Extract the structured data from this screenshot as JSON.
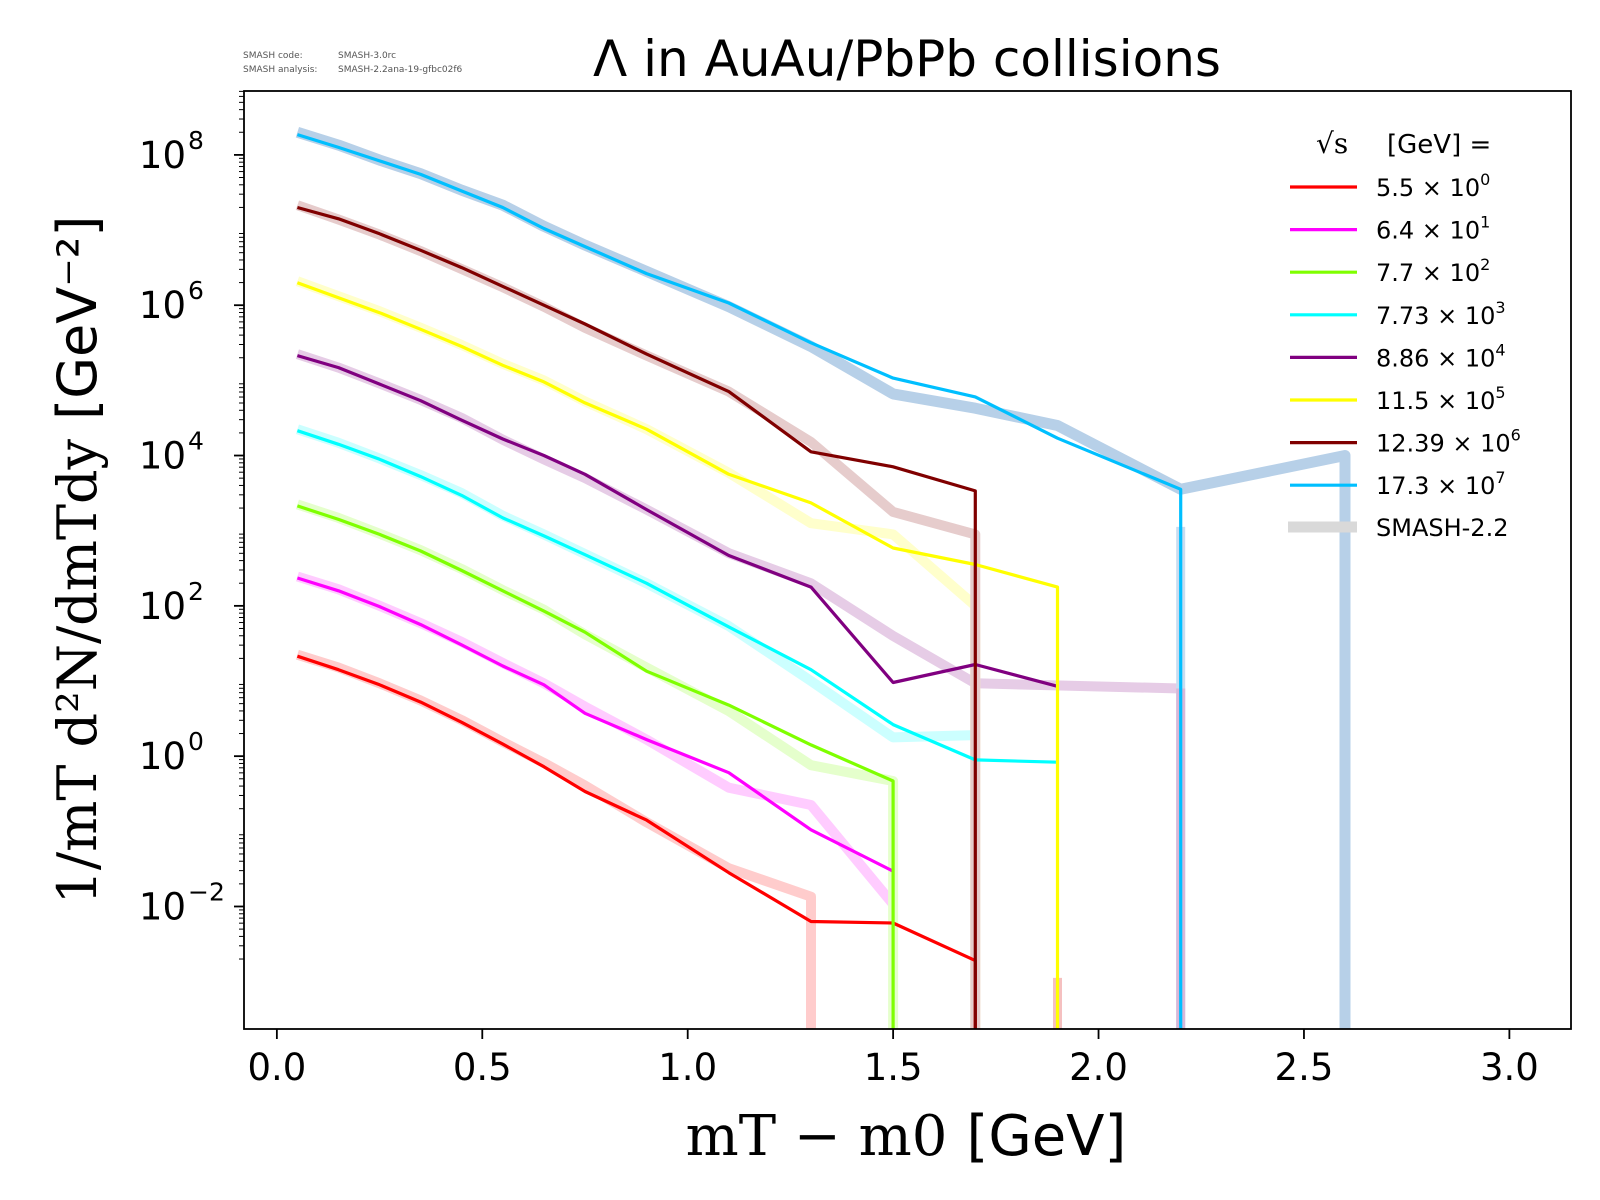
{
  "chart_data": {
    "type": "line",
    "title": "Λ in AuAu/PbPb collisions",
    "version_info": {
      "code_label": "SMASH code:",
      "code_value": "SMASH-3.0rc",
      "analysis_label": "SMASH analysis:",
      "analysis_value": "SMASH-2.2ana-19-gfbc02f6"
    },
    "xlabel": {
      "math": "mT − m0",
      "unit": "[GeV]"
    },
    "ylabel": {
      "math": "1/mT d²N/dmTdy",
      "unit": "[GeV⁻²]"
    },
    "yscale": "log",
    "xlim": [
      -0.08,
      3.15
    ],
    "ylim_log10": [
      -3.63,
      8.85
    ],
    "x_ticks": [
      0.0,
      0.5,
      1.0,
      1.5,
      2.0,
      2.5,
      3.0
    ],
    "x_tick_labels": [
      "0.0",
      "0.5",
      "1.0",
      "1.5",
      "2.0",
      "2.5",
      "3.0"
    ],
    "y_ticks_log10": [
      -2,
      0,
      2,
      4,
      6,
      8
    ],
    "y_tick_labels": [
      "10",
      "10",
      "10",
      "10",
      "10",
      "10"
    ],
    "y_tick_exponents": [
      "−2",
      "0",
      "2",
      "4",
      "6",
      "8"
    ],
    "legend": {
      "title_prefix": "√s",
      "title_suffix": "[GeV] =",
      "placement": "top-right",
      "reference_label": "SMASH-2.2"
    },
    "series": [
      {
        "name": "5.5 × 10^0",
        "mantissa": "5.5 ×",
        "base": "10",
        "exp": "0",
        "color": "#ff0000",
        "x": [
          0.05,
          0.15,
          0.25,
          0.35,
          0.45,
          0.55,
          0.65,
          0.75,
          0.9,
          1.1,
          1.3,
          1.5,
          1.7,
          1.7
        ],
        "log10y": [
          1.33,
          1.15,
          0.95,
          0.72,
          0.45,
          0.16,
          -0.14,
          -0.47,
          -0.85,
          -1.55,
          -2.2,
          -2.22,
          -2.72,
          -3.63
        ],
        "ref_x": [
          0.05,
          0.15,
          0.25,
          0.35,
          0.45,
          0.55,
          0.65,
          0.75,
          0.9,
          1.1,
          1.3,
          1.3
        ],
        "ref_log10y": [
          1.35,
          1.18,
          0.97,
          0.74,
          0.48,
          0.19,
          -0.09,
          -0.39,
          -0.88,
          -1.49,
          -1.87,
          -3.63
        ]
      },
      {
        "name": "6.4 × 10^1",
        "mantissa": "6.4 ×",
        "base": "10",
        "exp": "1",
        "color": "#ff00ff",
        "x": [
          0.05,
          0.15,
          0.25,
          0.35,
          0.45,
          0.55,
          0.65,
          0.75,
          0.9,
          1.1,
          1.3,
          1.5
        ],
        "log10y": [
          2.37,
          2.2,
          1.99,
          1.75,
          1.48,
          1.2,
          0.95,
          0.57,
          0.22,
          -0.22,
          -0.98,
          -1.53
        ],
        "ref_x": [
          0.05,
          0.15,
          0.25,
          0.35,
          0.45,
          0.55,
          0.65,
          0.75,
          0.9,
          1.1,
          1.3,
          1.5
        ],
        "ref_log10y": [
          2.39,
          2.22,
          2.0,
          1.77,
          1.52,
          1.24,
          0.97,
          0.66,
          0.22,
          -0.42,
          -0.65,
          -1.97
        ]
      },
      {
        "name": "7.7 × 10^2",
        "mantissa": "7.7 ×",
        "base": "10",
        "exp": "2",
        "color": "#7fff00",
        "x": [
          0.05,
          0.15,
          0.25,
          0.35,
          0.45,
          0.55,
          0.65,
          0.75,
          0.9,
          1.1,
          1.3,
          1.5,
          1.5
        ],
        "log10y": [
          3.33,
          3.15,
          2.95,
          2.73,
          2.47,
          2.2,
          1.93,
          1.65,
          1.13,
          0.68,
          0.15,
          -0.33,
          -3.63
        ],
        "ref_x": [
          0.05,
          0.15,
          0.25,
          0.35,
          0.45,
          0.55,
          0.65,
          0.75,
          0.9,
          1.1,
          1.3,
          1.5,
          1.5
        ],
        "ref_log10y": [
          3.35,
          3.17,
          2.96,
          2.74,
          2.49,
          2.21,
          1.95,
          1.62,
          1.18,
          0.6,
          -0.12,
          -0.33,
          -3.63
        ]
      },
      {
        "name": "7.73 × 10^3",
        "mantissa": "7.73 ×",
        "base": "10",
        "exp": "3",
        "color": "#00ffff",
        "x": [
          0.05,
          0.15,
          0.25,
          0.35,
          0.45,
          0.55,
          0.65,
          0.75,
          0.9,
          1.1,
          1.3,
          1.5,
          1.7,
          1.9
        ],
        "log10y": [
          4.33,
          4.15,
          3.95,
          3.72,
          3.47,
          3.17,
          2.93,
          2.68,
          2.3,
          1.72,
          1.15,
          0.42,
          -0.05,
          -0.08
        ],
        "ref_x": [
          0.05,
          0.15,
          0.25,
          0.35,
          0.45,
          0.55,
          0.65,
          0.75,
          0.9,
          1.1,
          1.3,
          1.5,
          1.7
        ],
        "ref_log10y": [
          4.35,
          4.17,
          3.96,
          3.74,
          3.5,
          3.2,
          2.95,
          2.69,
          2.3,
          1.73,
          1.0,
          0.25,
          0.28
        ]
      },
      {
        "name": "8.86 × 10^4",
        "mantissa": "8.86 ×",
        "base": "10",
        "exp": "4",
        "color": "#800080",
        "x": [
          0.05,
          0.15,
          0.25,
          0.35,
          0.45,
          0.55,
          0.65,
          0.75,
          0.9,
          1.1,
          1.3,
          1.5,
          1.7,
          1.9
        ],
        "log10y": [
          5.33,
          5.17,
          4.95,
          4.73,
          4.47,
          4.22,
          4.0,
          3.75,
          3.28,
          2.67,
          2.25,
          0.98,
          1.22,
          0.93
        ],
        "ref_x": [
          0.05,
          0.15,
          0.25,
          0.35,
          0.45,
          0.55,
          0.65,
          0.75,
          0.9,
          1.1,
          1.3,
          1.5,
          1.7,
          2.2
        ],
        "ref_log10y": [
          5.35,
          5.17,
          4.96,
          4.74,
          4.5,
          4.21,
          3.95,
          3.7,
          3.28,
          2.7,
          2.3,
          1.6,
          0.97,
          0.9
        ]
      },
      {
        "name": "11.5 × 10^5",
        "mantissa": "11.5 ×",
        "base": "10",
        "exp": "5",
        "color": "#ffff00",
        "x": [
          0.05,
          0.15,
          0.25,
          0.35,
          0.45,
          0.55,
          0.65,
          0.75,
          0.9,
          1.1,
          1.3,
          1.5,
          1.7,
          1.9,
          1.9
        ],
        "log10y": [
          6.3,
          6.1,
          5.9,
          5.68,
          5.45,
          5.2,
          4.98,
          4.7,
          4.35,
          3.75,
          3.37,
          2.77,
          2.55,
          2.25,
          -3.63
        ],
        "ref_x": [
          0.05,
          0.15,
          0.25,
          0.35,
          0.45,
          0.55,
          0.65,
          0.75,
          0.9,
          1.1,
          1.3,
          1.5,
          1.7,
          1.7
        ],
        "ref_log10y": [
          6.32,
          6.12,
          5.92,
          5.7,
          5.47,
          5.22,
          5.0,
          4.72,
          4.35,
          3.77,
          3.1,
          2.95,
          2.0,
          -3.63
        ]
      },
      {
        "name": "12.39 × 10^6",
        "mantissa": "12.39 ×",
        "base": "10",
        "exp": "6",
        "color": "#800000",
        "x": [
          0.05,
          0.15,
          0.25,
          0.35,
          0.45,
          0.55,
          0.65,
          0.75,
          0.9,
          1.1,
          1.3,
          1.5,
          1.7,
          1.7
        ],
        "log10y": [
          7.3,
          7.15,
          6.95,
          6.73,
          6.5,
          6.25,
          6.0,
          5.75,
          5.35,
          4.85,
          4.05,
          3.85,
          3.53,
          -3.63
        ],
        "ref_x": [
          0.05,
          0.15,
          0.25,
          0.35,
          0.45,
          0.55,
          0.65,
          0.75,
          0.9,
          1.1,
          1.3,
          1.5,
          1.7,
          1.7
        ],
        "ref_log10y": [
          7.33,
          7.14,
          6.94,
          6.72,
          6.48,
          6.24,
          5.98,
          5.7,
          5.33,
          4.85,
          4.18,
          3.25,
          2.95,
          -3.63
        ]
      },
      {
        "name": "17.3 × 10^7",
        "mantissa": "17.3 ×",
        "base": "10",
        "exp": "7",
        "color": "#00bfff",
        "x": [
          0.05,
          0.15,
          0.25,
          0.35,
          0.45,
          0.55,
          0.65,
          0.75,
          0.9,
          1.1,
          1.3,
          1.5,
          1.7,
          1.9,
          2.2,
          2.2
        ],
        "log10y": [
          8.27,
          8.1,
          7.92,
          7.74,
          7.52,
          7.3,
          7.02,
          6.78,
          6.42,
          6.03,
          5.5,
          5.03,
          4.78,
          4.23,
          3.55,
          -3.63
        ],
        "ref_x": [
          0.05,
          0.15,
          0.25,
          0.35,
          0.45,
          0.55,
          0.65,
          0.75,
          0.9,
          1.1,
          1.3,
          1.5,
          1.7,
          1.9,
          2.2,
          2.6,
          2.6
        ],
        "ref_log10y": [
          8.3,
          8.13,
          7.93,
          7.75,
          7.53,
          7.33,
          7.05,
          6.8,
          6.45,
          5.98,
          5.45,
          4.82,
          4.63,
          4.4,
          3.55,
          4.0,
          -3.63
        ]
      }
    ],
    "reference_series": {
      "name": "SMASH-2.2",
      "extra": [
        {
          "color": "#c8dcf0",
          "x": [
            2.2,
            2.2
          ],
          "log10y": [
            3.05,
            -3.63
          ]
        },
        {
          "color": "#f5c0c0",
          "x": [
            1.9,
            1.9
          ],
          "log10y": [
            -2.95,
            -3.63
          ]
        },
        {
          "color": "#d8b7d8",
          "x": [
            2.2,
            2.2
          ],
          "log10y": [
            0.9,
            -3.63
          ]
        }
      ]
    }
  }
}
